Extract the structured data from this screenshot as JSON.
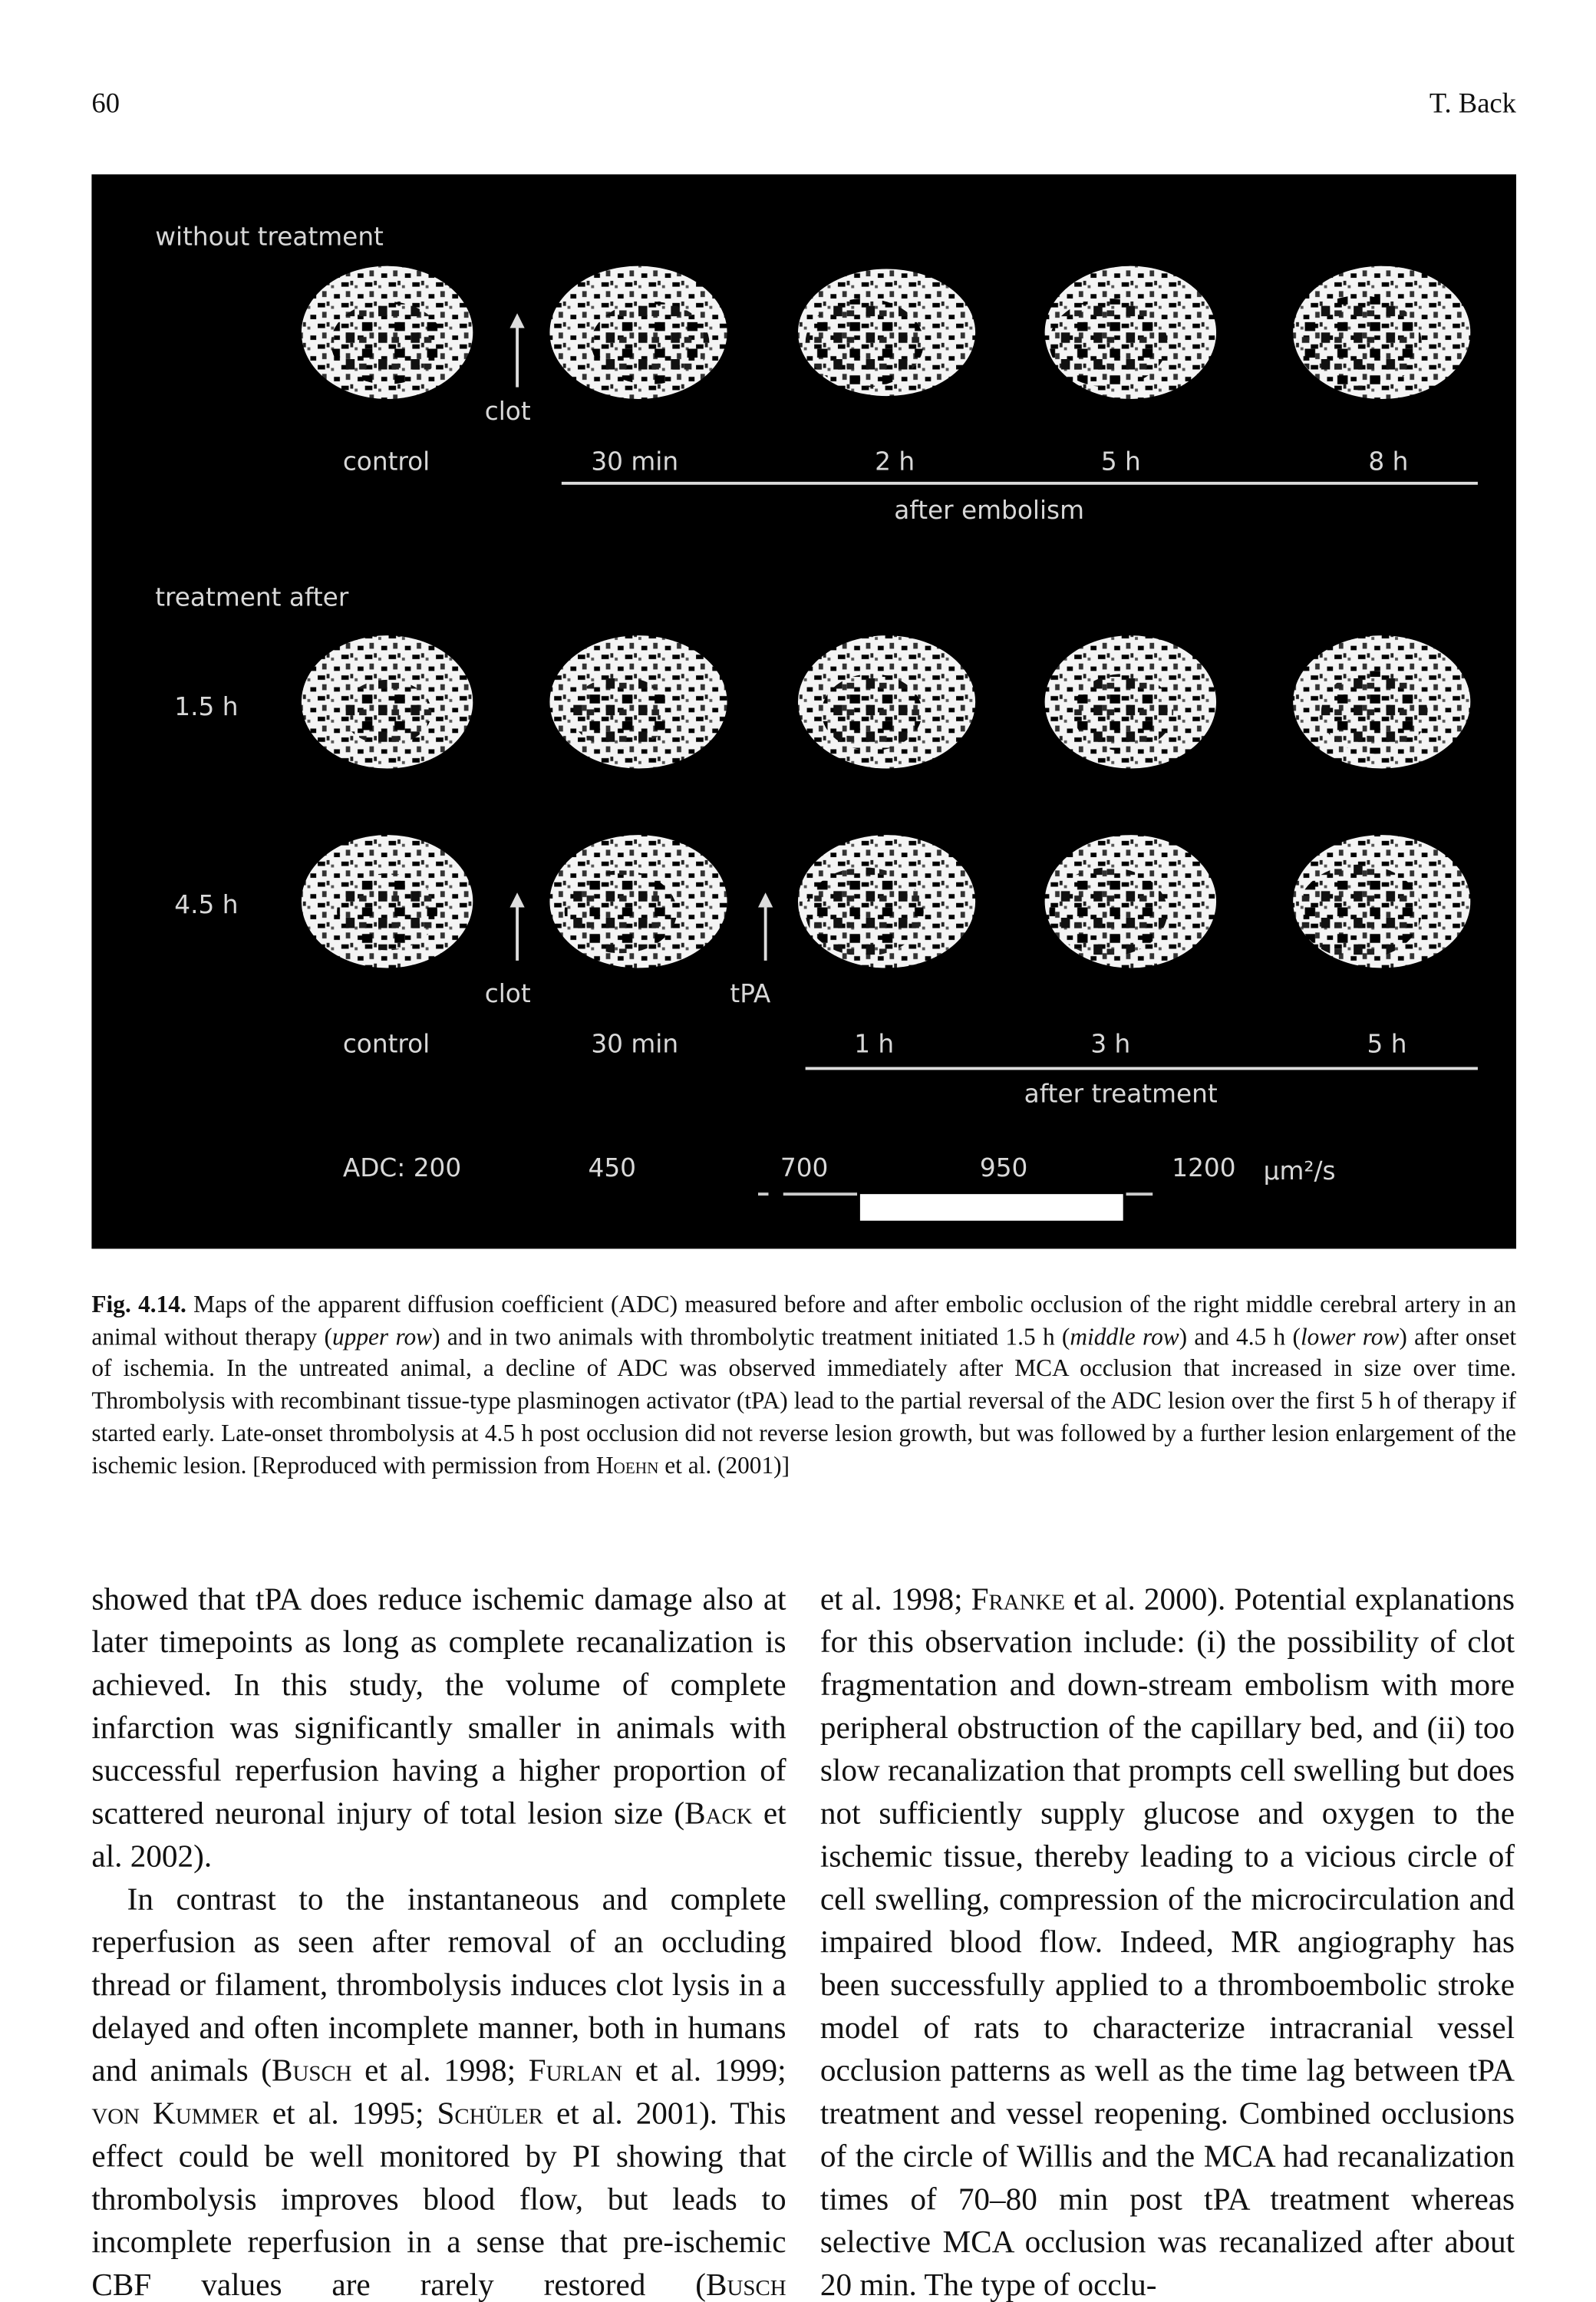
{
  "header": {
    "page_number": "60",
    "running_title": "T. Back"
  },
  "figure": {
    "labels": [
      "without treatment",
      "clot",
      "control",
      "30 min",
      "2 h",
      "5 h",
      "8 h",
      "after embolism",
      "treatment after",
      "1.5 h",
      "4.5 h",
      "clot",
      "tPA",
      "control",
      "30 min",
      "1 h",
      "3 h",
      "5 h",
      "after treatment",
      "ADC: 200",
      "450",
      "700",
      "950",
      "1200",
      "µm²/s"
    ]
  },
  "caption": {
    "label": "Fig. 4.14.",
    "text": [
      "Maps of the apparent diffusion coefficient (ADC) measured before and after embolic occlusion of the right middle cerebral artery in an animal without therapy (",
      "upper row",
      ") and in two animals with thrombolytic treatment initiated 1.5 h (",
      "middle row",
      ") and 4.5 h (",
      "lower row",
      ") after onset of ischemia. In the untreated animal, a decline of ADC was observed immediately after MCA occlusion that increased in size over time. Thrombolysis with recombinant tissue-type plasminogen activator (tPA) lead to the partial reversal of the ADC lesion over the first 5 h of therapy if started early. Late-onset thrombolysis at 4.5 h post occlusion did not reverse lesion growth, but was followed by a further lesion enlargement of the ischemic lesion. [Reproduced with permission from ",
      "Hoehn",
      " et al. (2001)]"
    ]
  },
  "columns": [
    {
      "paragraphs": [
        [
          "showed that tPA does reduce ischemic damage also at later timepoints as long as complete recanalization is achieved. In this study, the volume of complete infarction was significantly smaller in animals with successful reperfusion having a higher proportion of scattered neuronal injury of total lesion size (",
          "Back",
          " et al. 2002)."
        ],
        [
          "In contrast to the instantaneous and complete reperfusion as seen after removal of an occluding thread or filament, thrombolysis induces clot lysis in a delayed and often incomplete manner, both in humans and animals (",
          "Busch",
          " et al. 1998; ",
          "Furlan",
          " et al. 1999; ",
          "von Kummer",
          " et al. 1995; ",
          "Schüler",
          " et al. 2001). This effect could be well monitored by PI showing that thrombolysis improves blood flow, but leads to incomplete reperfusion in a sense that pre-ischemic CBF values are rarely restored (",
          "Busch"
        ]
      ]
    },
    {
      "paragraphs": [
        [
          "et al. 1998; ",
          "Franke",
          " et al. 2000). Potential explanations for this observation include: (i) the possibility of clot fragmentation and down-stream embolism with more peripheral obstruction of the capillary bed, and (ii) too slow recanalization that prompts cell swelling but does not sufficiently supply glucose and oxygen to the ischemic tissue, thereby leading to a vicious circle of cell swelling, compression of the microcirculation and impaired blood flow. Indeed, MR angiography has been successfully applied to a thromboembolic stroke model of rats to characterize intracranial vessel occlusion patterns as well as the time lag between tPA treatment and vessel reopening. Combined occlusions of the circle of Willis and the MCA had recanalization times of 70–80 min post tPA treatment whereas selective MCA occlusion was recanalized after about 20 min. The type of occlu-"
        ]
      ]
    }
  ]
}
